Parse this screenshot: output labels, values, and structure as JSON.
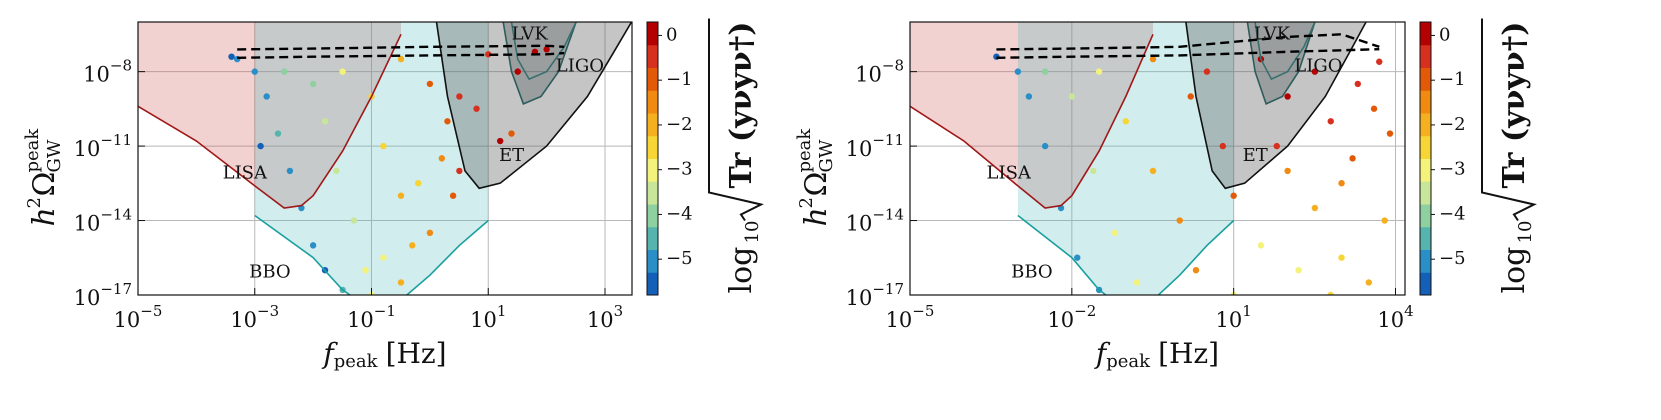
{
  "chart_data": [
    {
      "type": "scatter",
      "xscale": "log",
      "yscale": "log",
      "grid": true,
      "xlabel": {
        "symbol": "f",
        "sub": "peak",
        "unit": "[Hz]"
      },
      "ylabel": {
        "base": "h",
        "power": "2",
        "symbol": "Ω",
        "sub": "GW",
        "sup": "peak"
      },
      "xlim": [
        1e-05,
        2900
      ],
      "ylim": [
        1e-17,
        1e-06
      ],
      "xticks": [
        {
          "value": 1e-05,
          "label": "10",
          "exponent": "−5"
        },
        {
          "value": 0.001,
          "label": "10",
          "exponent": "−3"
        },
        {
          "value": 0.1,
          "label": "10",
          "exponent": "−1"
        },
        {
          "value": 10,
          "label": "10",
          "exponent": "1"
        },
        {
          "value": 1000,
          "label": "10",
          "exponent": "3"
        }
      ],
      "yticks": [
        {
          "value": 1e-08,
          "label": "10",
          "exponent": "−8"
        },
        {
          "value": 1e-11,
          "label": "10",
          "exponent": "−11"
        },
        {
          "value": 1e-14,
          "label": "10",
          "exponent": "−14"
        },
        {
          "value": 1e-17,
          "label": "10",
          "exponent": "−17"
        }
      ],
      "x": [
        0.0005,
        0.001,
        0.0016,
        0.0025,
        0.004,
        0.0063,
        0.01,
        0.016,
        0.032,
        0.0032,
        0.01,
        0.016,
        0.025,
        0.05,
        0.079,
        0.1,
        0.032,
        0.1,
        0.16,
        0.32,
        0.5,
        0.32,
        0.32,
        1,
        2,
        3.2,
        2.5,
        10,
        32,
        63,
        6.3,
        1.6,
        0.63,
        16,
        100,
        0.0004,
        0.00126,
        0.16,
        1,
        3.2,
        25
      ],
      "values": [
        3.2e-08,
        1e-08,
        1e-09,
        3.2e-11,
        1e-12,
        3.2e-14,
        1e-15,
        1e-16,
        1.6e-17,
        1e-08,
        3.2e-09,
        1e-10,
        1e-12,
        1e-14,
        1e-16,
        1e-17,
        1e-08,
        1e-09,
        1e-11,
        1e-13,
        1e-15,
        3.2e-17,
        3.2e-08,
        3.2e-09,
        1e-10,
        1e-12,
        1e-13,
        5e-08,
        1e-08,
        6.3e-08,
        3.2e-10,
        3.2e-12,
        3.2e-13,
        1.6e-11,
        7.9e-08,
        4e-08,
        1e-11,
        3.2e-16,
        3.2e-15,
        1e-09,
        3.2e-11
      ],
      "color_values": [
        -5.2,
        -5,
        -4.8,
        -4.6,
        -4.8,
        -5,
        -5.2,
        -5.3,
        -4.5,
        -4.2,
        -3.8,
        -3.6,
        -3.5,
        -3.3,
        -3,
        -2.8,
        -3,
        -2.6,
        -2.4,
        -2,
        -1.8,
        -2.2,
        -1.8,
        -1.2,
        -0.8,
        -0.6,
        -1,
        -0.3,
        0,
        0.1,
        -0.4,
        -1.5,
        -2.5,
        -0.2,
        0,
        -5.5,
        -5.3,
        -2.8,
        -1.4,
        -0.7,
        -1
      ],
      "regions": [
        {
          "name": "LISA",
          "color": "#a01818",
          "fill": "rgba(205,70,70,0.25)",
          "x": [
            1e-05,
            0.0001,
            0.001,
            0.0032,
            0.0063,
            0.01,
            0.032,
            0.1,
            0.32
          ],
          "y": [
            4e-10,
            1.6e-11,
            2.5e-13,
            3.2e-14,
            4e-14,
            1e-13,
            6.3e-12,
            1e-09,
            3.2e-07
          ]
        },
        {
          "name": "BBO",
          "color": "#1a9f9f",
          "fill": "rgba(70,185,185,0.25)",
          "x": [
            0.001,
            0.01,
            0.032,
            0.1,
            0.32,
            1,
            3.2,
            10
          ],
          "y": [
            1.6e-14,
            3.2e-16,
            1.6e-17,
            2.5e-18,
            6.3e-18,
            6.3e-17,
            1e-15,
            1e-14
          ]
        },
        {
          "name": "ET",
          "color": "#111111",
          "fill": "rgba(90,90,90,0.35)",
          "x": [
            1.3,
            2,
            4,
            7,
            16,
            100,
            500,
            1600,
            3200
          ],
          "y": [
            1e-06,
            1e-09,
            1e-12,
            2e-13,
            3.2e-13,
            1e-11,
            1e-09,
            1e-07,
            1.6e-06
          ]
        },
        {
          "name": "LVK",
          "color": "#2d5c5c",
          "fill": "rgba(60,70,70,0.3)",
          "x": [
            18,
            25,
            40,
            80,
            160,
            320
          ],
          "y": [
            1e-06,
            1e-08,
            5e-10,
            1e-09,
            1e-08,
            1e-06
          ]
        },
        {
          "name": "LIGO",
          "color": "#3a6f6f",
          "fill": "none",
          "x": [
            25,
            32,
            50,
            100,
            200,
            320
          ],
          "y": [
            1e-06,
            3.2e-08,
            5e-09,
            1e-08,
            1e-07,
            1e-06
          ]
        }
      ],
      "lines": [
        {
          "color": "#000000",
          "x": [
            0.0005,
            0.01,
            1,
            100,
            200
          ],
          "y": [
            7.9e-08,
            8.5e-08,
            1e-07,
            1.1e-07,
            1e-07
          ]
        },
        {
          "color": "#000000",
          "x": [
            0.0005,
            0.01,
            1,
            100,
            200
          ],
          "y": [
            3.6e-08,
            4e-08,
            4.5e-08,
            5e-08,
            5.6e-08
          ]
        }
      ],
      "colorbar": {
        "lim": [
          -5.8,
          0.3
        ],
        "ticks": [
          {
            "value": 0,
            "label": "0"
          },
          {
            "value": -1,
            "label": "−1"
          },
          {
            "value": -2,
            "label": "−2"
          },
          {
            "value": -3,
            "label": "−3"
          },
          {
            "value": -4,
            "label": "−4"
          },
          {
            "value": -5,
            "label": "−5"
          }
        ],
        "colors": [
          "#1460b8",
          "#2a8fc6",
          "#56b4ae",
          "#8ed0a0",
          "#c8e69a",
          "#f3f27a",
          "#f6d535",
          "#f5b020",
          "#f08a10",
          "#e25a08",
          "#d7301f",
          "#b40000"
        ],
        "label": {
          "log": "log",
          "base": "10",
          "body": "Tr (yνyν†)"
        }
      }
    },
    {
      "type": "scatter",
      "xscale": "log",
      "yscale": "log",
      "grid": true,
      "xlabel": {
        "symbol": "f",
        "sub": "peak",
        "unit": "[Hz]"
      },
      "ylabel": {
        "base": "h",
        "power": "2",
        "symbol": "Ω",
        "sub": "GW",
        "sup": "peak"
      },
      "xlim": [
        1e-05,
        15000
      ],
      "ylim": [
        1e-17,
        1e-06
      ],
      "xticks": [
        {
          "value": 1e-05,
          "label": "10",
          "exponent": "−5"
        },
        {
          "value": 0.01,
          "label": "10",
          "exponent": "−2"
        },
        {
          "value": 10,
          "label": "10",
          "exponent": "1"
        },
        {
          "value": 10000,
          "label": "10",
          "exponent": "4"
        }
      ],
      "yticks": [
        {
          "value": 1e-08,
          "label": "10",
          "exponent": "−8"
        },
        {
          "value": 1e-11,
          "label": "10",
          "exponent": "−11"
        },
        {
          "value": 1e-14,
          "label": "10",
          "exponent": "−14"
        },
        {
          "value": 1e-17,
          "label": "10",
          "exponent": "−17"
        }
      ],
      "x": [
        0.0004,
        0.001,
        0.0016,
        0.0032,
        0.0063,
        0.0126,
        0.032,
        0.0032,
        0.01,
        0.025,
        0.063,
        0.16,
        0.032,
        0.1,
        0.32,
        1,
        2,
        0.32,
        1.6,
        6.3,
        10,
        32,
        100,
        320,
        630,
        2000,
        4000,
        7900,
        100,
        320,
        1000,
        32,
        160,
        1000,
        3200,
        6300,
        10,
        630,
        1600,
        63,
        3.2,
        5000
      ],
      "values": [
        4e-08,
        1e-08,
        1e-09,
        1e-11,
        3.2e-14,
        3.2e-16,
        1.6e-17,
        1e-08,
        1e-09,
        1e-12,
        3.2e-15,
        3.2e-17,
        1e-08,
        1e-10,
        1e-12,
        1e-14,
        1e-16,
        3.2e-08,
        1e-09,
        1e-11,
        1e-13,
        3.2e-08,
        1e-09,
        1e-08,
        1e-10,
        3.2e-09,
        3.2e-10,
        3.2e-11,
        1e-12,
        3.2e-14,
        3.2e-13,
        1e-15,
        1e-16,
        3.2e-16,
        3.2e-17,
        1e-14,
        1e-17,
        1e-17,
        3.2e-12,
        1e-11,
        1e-08,
        2.5e-08
      ],
      "color_values": [
        -5.5,
        -5,
        -4.8,
        -4.9,
        -5,
        -5.2,
        -5,
        -4.2,
        -3.6,
        -3.4,
        -3.2,
        -3,
        -3,
        -2.4,
        -1.8,
        -1.5,
        -1.6,
        -1.5,
        -1,
        -0.6,
        -1,
        -0.2,
        0,
        0.1,
        -0.3,
        -0.5,
        -0.8,
        -1,
        -1.3,
        -2,
        -1.5,
        -2.8,
        -3,
        -2.5,
        -1.8,
        -2.2,
        -3.2,
        -2.6,
        -1,
        -0.5,
        -0.4,
        -0.3
      ],
      "regions": [
        {
          "name": "LISA",
          "color": "#a01818",
          "fill": "rgba(205,70,70,0.25)",
          "x": [
            1e-05,
            0.0001,
            0.001,
            0.0032,
            0.0063,
            0.01,
            0.032,
            0.1,
            0.32
          ],
          "y": [
            4e-10,
            1.6e-11,
            2.5e-13,
            3.2e-14,
            4e-14,
            1e-13,
            6.3e-12,
            1e-09,
            3.2e-07
          ]
        },
        {
          "name": "BBO",
          "color": "#1a9f9f",
          "fill": "rgba(70,185,185,0.25)",
          "x": [
            0.001,
            0.01,
            0.032,
            0.1,
            0.32,
            1,
            3.2,
            10
          ],
          "y": [
            1.6e-14,
            3.2e-16,
            1.6e-17,
            2.5e-18,
            6.3e-18,
            6.3e-17,
            1e-15,
            1e-14
          ]
        },
        {
          "name": "ET",
          "color": "#111111",
          "fill": "rgba(90,90,90,0.35)",
          "x": [
            1.3,
            2,
            4,
            7,
            16,
            100,
            500,
            1600,
            3200
          ],
          "y": [
            1e-06,
            1e-09,
            1e-12,
            2e-13,
            3.2e-13,
            1e-11,
            1e-09,
            1e-07,
            1.6e-06
          ]
        },
        {
          "name": "LVK",
          "color": "#2d5c5c",
          "fill": "rgba(60,70,70,0.3)",
          "x": [
            18,
            25,
            40,
            80,
            160,
            320
          ],
          "y": [
            1e-06,
            1e-08,
            5e-10,
            1e-09,
            1e-08,
            1e-06
          ]
        },
        {
          "name": "LIGO",
          "color": "#3a6f6f",
          "fill": "none",
          "x": [
            25,
            32,
            50,
            100,
            200,
            320
          ],
          "y": [
            1e-06,
            3.2e-08,
            5e-09,
            1e-08,
            1e-07,
            1e-06
          ]
        }
      ],
      "lines": [
        {
          "color": "#000000",
          "x": [
            0.0004,
            0.01,
            1,
            100,
            1000,
            5000
          ],
          "y": [
            7.9e-08,
            8.5e-08,
            1e-07,
            2.5e-07,
            3.2e-07,
            1e-07
          ]
        },
        {
          "color": "#000000",
          "x": [
            0.0004,
            0.01,
            1,
            100,
            5000
          ],
          "y": [
            3.6e-08,
            4e-08,
            4.5e-08,
            6.3e-08,
            8e-08
          ]
        }
      ],
      "colorbar": {
        "lim": [
          -5.8,
          0.3
        ],
        "ticks": [
          {
            "value": 0,
            "label": "0"
          },
          {
            "value": -1,
            "label": "−1"
          },
          {
            "value": -2,
            "label": "−2"
          },
          {
            "value": -3,
            "label": "−3"
          },
          {
            "value": -4,
            "label": "−4"
          },
          {
            "value": -5,
            "label": "−5"
          }
        ],
        "colors": [
          "#1460b8",
          "#2a8fc6",
          "#56b4ae",
          "#8ed0a0",
          "#c8e69a",
          "#f3f27a",
          "#f6d535",
          "#f5b020",
          "#f08a10",
          "#e25a08",
          "#d7301f",
          "#b40000"
        ],
        "label": {
          "log": "log",
          "base": "10",
          "body": "Tr (yνyν†)"
        }
      }
    }
  ]
}
